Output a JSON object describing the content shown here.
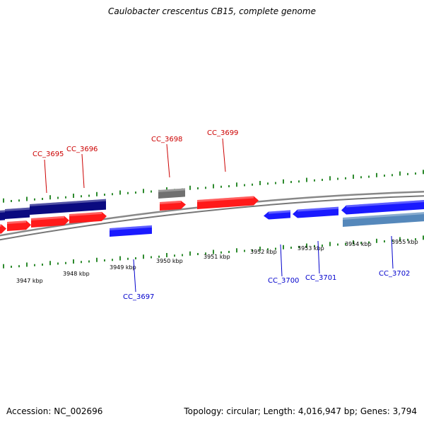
{
  "title": "Caulobacter crescentus CB15, complete genome",
  "footer": {
    "accession": "Accession: NC_002696",
    "stats": "Topology: circular; Length: 4,016,947 bp; Genes: 3,794"
  },
  "colors": {
    "forward_gene": "#ff1a1a",
    "reverse_gene": "#1a1aff",
    "dark_gene": "#0a0a80",
    "grey_gene": "#707070",
    "steel_gene": "#5588bb",
    "backbone": "#888888",
    "ticks": "#2e8b2e",
    "forward_label": "#cc0000",
    "reverse_label": "#0000cc"
  },
  "scale_labels": [
    "3947 kbp",
    "3948 kbp",
    "3949 kbp",
    "3950 kbp",
    "3951 kbp",
    "3952 kbp",
    "3953 kbp",
    "3954 kbp",
    "3955 kbp"
  ],
  "gene_labels": {
    "forward": [
      "CC_3695",
      "CC_3696",
      "CC_3698",
      "CC_3699"
    ],
    "reverse": [
      "CC_3697",
      "CC_3700",
      "CC_3701",
      "CC_3702"
    ]
  }
}
